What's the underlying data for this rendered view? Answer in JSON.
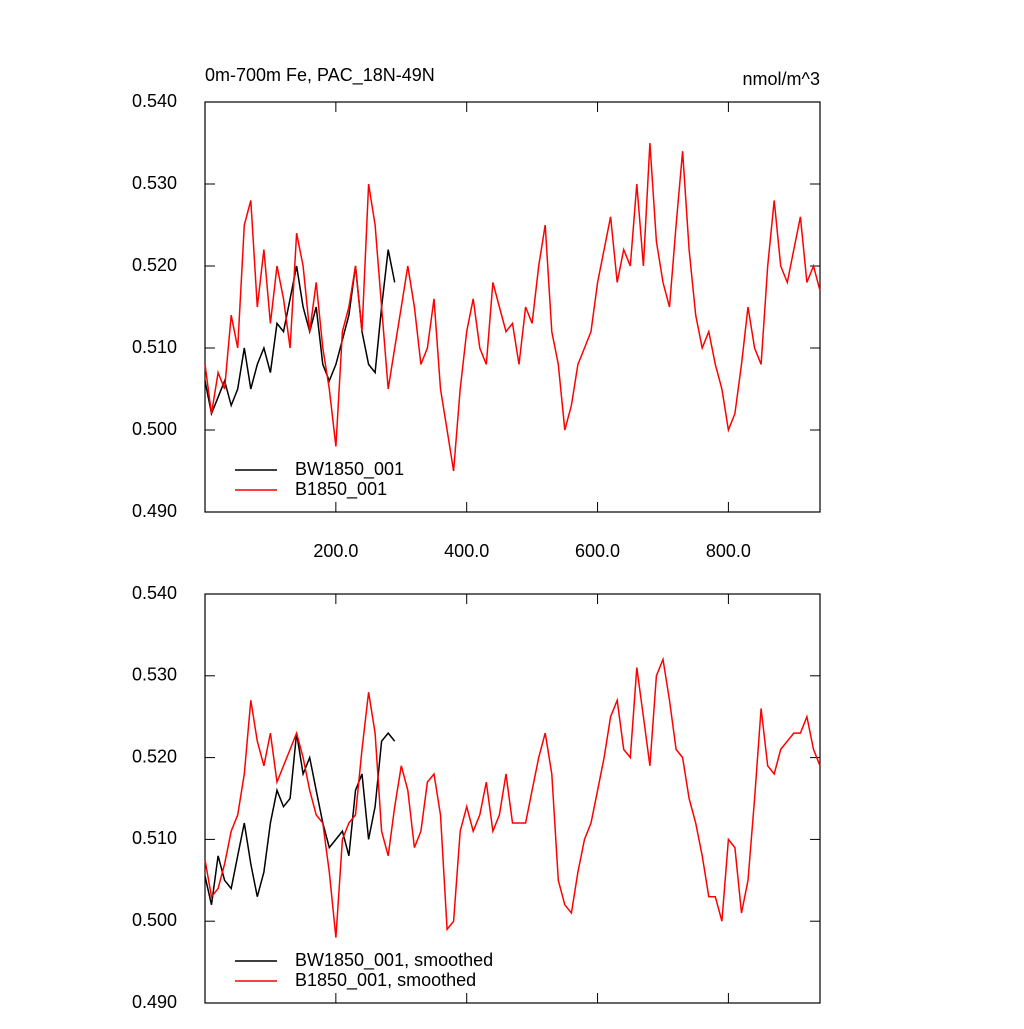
{
  "chart_data": [
    {
      "type": "line",
      "title": "0m-700m Fe, PAC_18N-49N",
      "units": "nmol/m^3",
      "xlim": [
        0,
        940
      ],
      "ylim": [
        0.49,
        0.54
      ],
      "xticks": [
        {
          "value": 200,
          "label": "200.0"
        },
        {
          "value": 400,
          "label": "400.0"
        },
        {
          "value": 600,
          "label": "600.0"
        },
        {
          "value": 800,
          "label": "800.0"
        }
      ],
      "yticks": [
        {
          "value": 0.49,
          "label": "0.490"
        },
        {
          "value": 0.5,
          "label": "0.500"
        },
        {
          "value": 0.51,
          "label": "0.510"
        },
        {
          "value": 0.52,
          "label": "0.520"
        },
        {
          "value": 0.53,
          "label": "0.530"
        },
        {
          "value": 0.54,
          "label": "0.540"
        }
      ],
      "legend": "lower left",
      "series": [
        {
          "name": "BW1850_001",
          "color": "#000000",
          "x": [
            0,
            10,
            20,
            30,
            40,
            50,
            60,
            70,
            80,
            90,
            100,
            110,
            120,
            130,
            140,
            150,
            160,
            170,
            180,
            190,
            200,
            210,
            220,
            230,
            240,
            250,
            260,
            270,
            280,
            290
          ],
          "values": [
            0.506,
            0.502,
            0.504,
            0.506,
            0.503,
            0.505,
            0.51,
            0.505,
            0.508,
            0.51,
            0.507,
            0.513,
            0.512,
            0.516,
            0.52,
            0.515,
            0.512,
            0.515,
            0.508,
            0.506,
            0.508,
            0.511,
            0.514,
            0.52,
            0.512,
            0.508,
            0.507,
            0.515,
            0.522,
            0.518
          ]
        },
        {
          "name": "B1850_001",
          "color": "#ff0000",
          "x": [
            0,
            10,
            20,
            30,
            40,
            50,
            60,
            70,
            80,
            90,
            100,
            110,
            120,
            130,
            140,
            150,
            160,
            170,
            180,
            190,
            200,
            210,
            220,
            230,
            240,
            250,
            260,
            270,
            280,
            290,
            300,
            310,
            320,
            330,
            340,
            350,
            360,
            370,
            380,
            390,
            400,
            410,
            420,
            430,
            440,
            450,
            460,
            470,
            480,
            490,
            500,
            510,
            520,
            530,
            540,
            550,
            560,
            570,
            580,
            590,
            600,
            610,
            620,
            630,
            640,
            650,
            660,
            670,
            680,
            690,
            700,
            710,
            720,
            730,
            740,
            750,
            760,
            770,
            780,
            790,
            800,
            810,
            820,
            830,
            840,
            850,
            860,
            870,
            880,
            890,
            900,
            910,
            920,
            930,
            940
          ],
          "values": [
            0.508,
            0.502,
            0.507,
            0.505,
            0.514,
            0.51,
            0.525,
            0.528,
            0.515,
            0.522,
            0.513,
            0.52,
            0.516,
            0.51,
            0.524,
            0.52,
            0.512,
            0.518,
            0.51,
            0.505,
            0.498,
            0.512,
            0.515,
            0.52,
            0.512,
            0.53,
            0.525,
            0.515,
            0.505,
            0.51,
            0.515,
            0.52,
            0.515,
            0.508,
            0.51,
            0.516,
            0.505,
            0.5,
            0.495,
            0.505,
            0.512,
            0.516,
            0.51,
            0.508,
            0.518,
            0.515,
            0.512,
            0.513,
            0.508,
            0.515,
            0.513,
            0.52,
            0.525,
            0.512,
            0.508,
            0.5,
            0.503,
            0.508,
            0.51,
            0.512,
            0.518,
            0.522,
            0.526,
            0.518,
            0.522,
            0.52,
            0.53,
            0.52,
            0.535,
            0.523,
            0.518,
            0.515,
            0.525,
            0.534,
            0.522,
            0.514,
            0.51,
            0.512,
            0.508,
            0.505,
            0.5,
            0.502,
            0.508,
            0.515,
            0.51,
            0.508,
            0.52,
            0.528,
            0.52,
            0.518,
            0.522,
            0.526,
            0.518,
            0.52,
            0.517
          ]
        }
      ]
    },
    {
      "type": "line",
      "xlim": [
        0,
        940
      ],
      "ylim": [
        0.49,
        0.54
      ],
      "xticks": [
        200,
        400,
        600,
        800
      ],
      "yticks": [
        {
          "value": 0.49,
          "label": "0.490"
        },
        {
          "value": 0.5,
          "label": "0.500"
        },
        {
          "value": 0.51,
          "label": "0.510"
        },
        {
          "value": 0.52,
          "label": "0.520"
        },
        {
          "value": 0.53,
          "label": "0.530"
        },
        {
          "value": 0.54,
          "label": "0.540"
        }
      ],
      "legend": "lower left",
      "series": [
        {
          "name": "BW1850_001, smoothed",
          "color": "#000000",
          "x": [
            0,
            10,
            20,
            30,
            40,
            50,
            60,
            70,
            80,
            90,
            100,
            110,
            120,
            130,
            140,
            150,
            160,
            170,
            180,
            190,
            200,
            210,
            220,
            230,
            240,
            250,
            260,
            270,
            280,
            290
          ],
          "values": [
            0.5055,
            0.502,
            0.508,
            0.505,
            0.504,
            0.508,
            0.512,
            0.507,
            0.503,
            0.506,
            0.512,
            0.516,
            0.514,
            0.515,
            0.523,
            0.518,
            0.52,
            0.516,
            0.512,
            0.509,
            0.51,
            0.511,
            0.508,
            0.516,
            0.518,
            0.51,
            0.514,
            0.522,
            0.523,
            0.522
          ]
        },
        {
          "name": "B1850_001, smoothed",
          "color": "#ff0000",
          "x": [
            0,
            10,
            20,
            30,
            40,
            50,
            60,
            70,
            80,
            90,
            100,
            110,
            120,
            130,
            140,
            150,
            160,
            170,
            180,
            190,
            200,
            210,
            220,
            230,
            240,
            250,
            260,
            270,
            280,
            290,
            300,
            310,
            320,
            330,
            340,
            350,
            360,
            370,
            380,
            390,
            400,
            410,
            420,
            430,
            440,
            450,
            460,
            470,
            480,
            490,
            500,
            510,
            520,
            530,
            540,
            550,
            560,
            570,
            580,
            590,
            600,
            610,
            620,
            630,
            640,
            650,
            660,
            670,
            680,
            690,
            700,
            710,
            720,
            730,
            740,
            750,
            760,
            770,
            780,
            790,
            800,
            810,
            820,
            830,
            840,
            850,
            860,
            870,
            880,
            890,
            900,
            910,
            920,
            930,
            940
          ],
          "values": [
            0.5075,
            0.503,
            0.504,
            0.507,
            0.511,
            0.513,
            0.518,
            0.527,
            0.522,
            0.519,
            0.523,
            0.517,
            0.519,
            0.521,
            0.523,
            0.52,
            0.516,
            0.513,
            0.512,
            0.506,
            0.498,
            0.51,
            0.512,
            0.513,
            0.521,
            0.528,
            0.523,
            0.511,
            0.508,
            0.514,
            0.519,
            0.516,
            0.509,
            0.511,
            0.517,
            0.518,
            0.513,
            0.499,
            0.5,
            0.511,
            0.514,
            0.511,
            0.513,
            0.517,
            0.511,
            0.513,
            0.518,
            0.512,
            0.512,
            0.512,
            0.516,
            0.52,
            0.523,
            0.518,
            0.505,
            0.502,
            0.501,
            0.506,
            0.51,
            0.512,
            0.516,
            0.52,
            0.525,
            0.527,
            0.521,
            0.52,
            0.531,
            0.525,
            0.519,
            0.53,
            0.532,
            0.527,
            0.521,
            0.52,
            0.515,
            0.512,
            0.508,
            0.503,
            0.503,
            0.5,
            0.51,
            0.509,
            0.501,
            0.505,
            0.515,
            0.526,
            0.519,
            0.518,
            0.521,
            0.522,
            0.523,
            0.523,
            0.525,
            0.521,
            0.519
          ]
        }
      ]
    }
  ]
}
